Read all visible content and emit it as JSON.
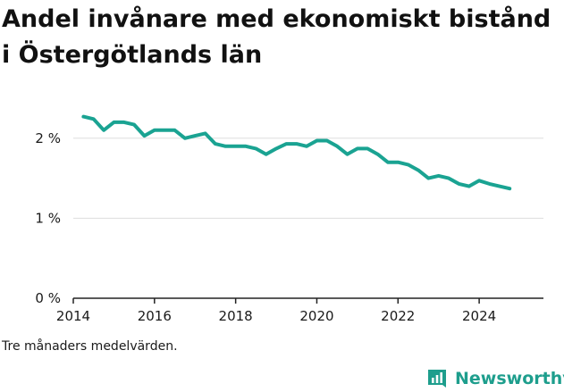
{
  "title": "Andel invånare med ekonomiskt bistånd i Östergötlands län",
  "footnote": "Tre månaders medelvärden.",
  "brand": {
    "name": "Newsworthy"
  },
  "colors": {
    "line": "#1aa392",
    "grid": "#dddddd",
    "axis": "#222222",
    "brand": "#1e9e8d"
  },
  "chart_data": {
    "type": "line",
    "x_type": "date",
    "x": [
      "2014-04",
      "2014-07",
      "2014-10",
      "2015-01",
      "2015-04",
      "2015-07",
      "2015-10",
      "2016-01",
      "2016-04",
      "2016-07",
      "2016-10",
      "2017-01",
      "2017-04",
      "2017-07",
      "2017-10",
      "2018-01",
      "2018-04",
      "2018-07",
      "2018-10",
      "2019-01",
      "2019-04",
      "2019-07",
      "2019-10",
      "2020-01",
      "2020-04",
      "2020-07",
      "2020-10",
      "2021-01",
      "2021-04",
      "2021-07",
      "2021-10",
      "2022-01",
      "2022-04",
      "2022-07",
      "2022-10",
      "2023-01",
      "2023-04",
      "2023-07",
      "2023-10",
      "2024-01",
      "2024-04",
      "2024-07",
      "2024-10"
    ],
    "y": [
      2.27,
      2.24,
      2.1,
      2.2,
      2.2,
      2.17,
      2.03,
      2.1,
      2.1,
      2.1,
      2.0,
      2.03,
      2.06,
      1.93,
      1.9,
      1.9,
      1.9,
      1.87,
      1.8,
      1.87,
      1.93,
      1.93,
      1.9,
      1.97,
      1.97,
      1.9,
      1.8,
      1.87,
      1.87,
      1.8,
      1.7,
      1.7,
      1.67,
      1.6,
      1.5,
      1.53,
      1.5,
      1.43,
      1.4,
      1.47,
      1.43,
      1.4,
      1.37
    ],
    "xlim": [
      "2014-01",
      "2025-08"
    ],
    "ylim": [
      0,
      2.5
    ],
    "x_ticks": [
      "2014",
      "2016",
      "2018",
      "2020",
      "2022",
      "2024"
    ],
    "y_ticks": [
      {
        "value": 0,
        "label": "0 %"
      },
      {
        "value": 1,
        "label": "1 %"
      },
      {
        "value": 2,
        "label": "2 %"
      }
    ],
    "grid": "horizontal",
    "legend": "none"
  }
}
